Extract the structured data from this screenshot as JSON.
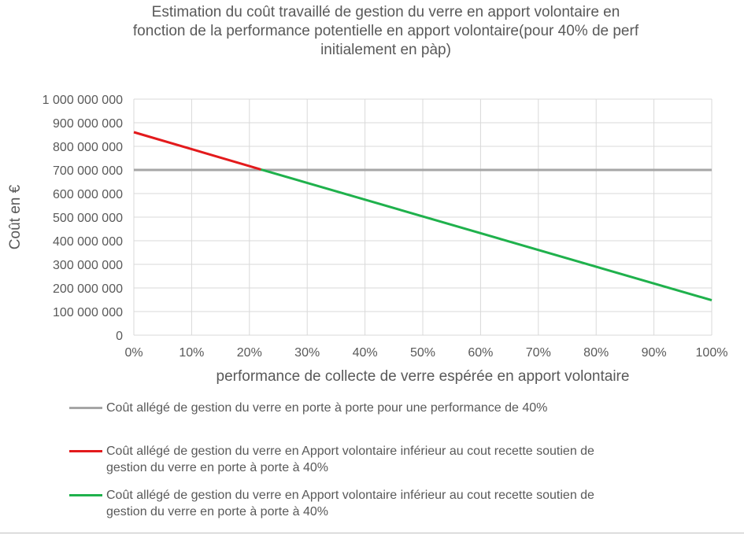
{
  "chart_data": {
    "type": "line",
    "title_lines": [
      "Estimation du coût travaillé de gestion du verre en apport volontaire en",
      "fonction de la performance potentielle en apport volontaire(pour 40% de perf",
      "initialement en pàp)"
    ],
    "xlabel": "performance de collecte de verre espérée en apport volontaire",
    "ylabel": "Coût en €",
    "xlim": [
      0,
      100
    ],
    "ylim": [
      0,
      1000000000
    ],
    "x_tick_labels": [
      "0%",
      "10%",
      "20%",
      "30%",
      "40%",
      "50%",
      "60%",
      "70%",
      "80%",
      "90%",
      "100%"
    ],
    "y_tick_labels": [
      "0",
      "100 000 000",
      "200 000 000",
      "300 000 000",
      "400 000 000",
      "500 000 000",
      "600 000 000",
      "700 000 000",
      "800 000 000",
      "900 000 000",
      "1 000 000 000"
    ],
    "grid": true,
    "legend_position": "bottom",
    "series": [
      {
        "name": "Coût allégé de gestion du verre en porte à porte pour une performance de 40%",
        "color": "#a6a6a6",
        "x": [
          0,
          100
        ],
        "y": [
          700000000,
          700000000
        ]
      },
      {
        "name": "Coût allégé de gestion du verre en Apport volontaire inférieur au cout recette soutien de gestion du verre en porte à porte à 40%",
        "color": "#e31a1c",
        "x": [
          0,
          22
        ],
        "y": [
          860000000,
          702000000
        ]
      },
      {
        "name": "Coût allégé de gestion du verre en Apport volontaire inférieur au cout recette soutien de gestion du verre en porte à porte à 40%",
        "color": "#1fb14c",
        "x": [
          22,
          100
        ],
        "y": [
          702000000,
          148000000
        ]
      }
    ]
  },
  "legend": [
    {
      "lines": [
        "Coût allégé de gestion du verre en porte à porte pour une performance de 40%"
      ]
    },
    {
      "lines": [
        "Coût allégé de gestion du verre en Apport volontaire inférieur au cout recette soutien de",
        "gestion du verre en porte à porte à 40%"
      ]
    },
    {
      "lines": [
        "Coût allégé de gestion du verre en Apport volontaire inférieur au cout recette soutien de",
        "gestion du verre en porte à porte à 40%"
      ]
    }
  ]
}
